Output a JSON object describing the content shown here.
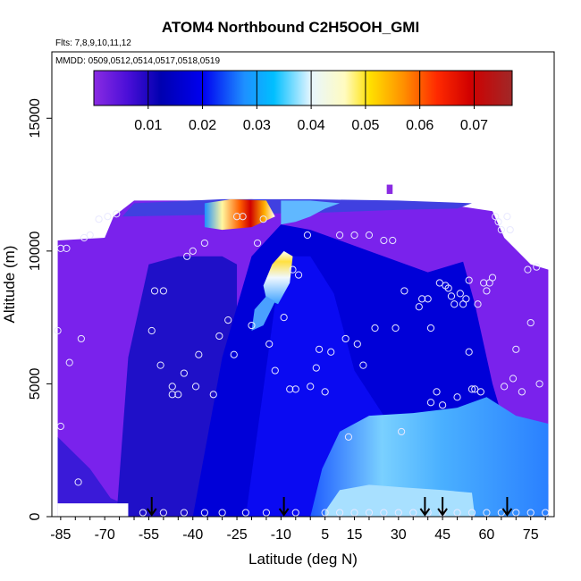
{
  "chart_data": {
    "type": "heatmap",
    "title": "ATOM4 Northbound C2H5OOH_GMI",
    "subtitle_flights": "Flts: 7,8,9,10,11,12",
    "subtitle_dates": "MMDD: 0509,0512,0514,0517,0518,0519",
    "xlabel": "Latitude (deg N)",
    "ylabel": "Altitude (m)",
    "xlim": [
      -88,
      83
    ],
    "ylim": [
      0,
      17500
    ],
    "x_ticks": [
      -85,
      -70,
      -55,
      -40,
      -25,
      -10,
      5,
      15,
      30,
      45,
      60,
      75
    ],
    "y_ticks": [
      0,
      5000,
      10000,
      15000
    ],
    "colorbar": {
      "range": [
        0,
        0.077
      ],
      "ticks": [
        0.01,
        0.02,
        0.03,
        0.04,
        0.05,
        0.06,
        0.07
      ],
      "tick_labels": [
        "0.01",
        "0.02",
        "0.03",
        "0.04",
        "0.05",
        "0.06",
        "0.07"
      ],
      "colors": [
        "#8a2be2",
        "#1a00c8",
        "#0000e0",
        "#1e90ff",
        "#00bfff",
        "#e0f4ff",
        "#fffaa0",
        "#ffd700",
        "#ff8c00",
        "#ff2000",
        "#c80000",
        "#a02828"
      ]
    },
    "arrows_latitude": [
      -54,
      -9,
      39,
      45,
      67
    ],
    "observation_points": [
      [
        -86,
        7000
      ],
      [
        -85,
        3400
      ],
      [
        -85,
        10100
      ],
      [
        -83,
        10100
      ],
      [
        -82,
        5800
      ],
      [
        -79,
        1300
      ],
      [
        -78,
        6700
      ],
      [
        -77,
        10500
      ],
      [
        -75,
        10600
      ],
      [
        -72,
        11200
      ],
      [
        -69,
        11300
      ],
      [
        -66,
        11400
      ],
      [
        -54,
        7000
      ],
      [
        -53,
        8500
      ],
      [
        -51,
        5700
      ],
      [
        -50,
        8500
      ],
      [
        -47,
        4600
      ],
      [
        -47,
        4900
      ],
      [
        -45,
        4600
      ],
      [
        -43,
        5400
      ],
      [
        -42,
        9800
      ],
      [
        -40,
        10000
      ],
      [
        -39,
        4900
      ],
      [
        -38,
        6100
      ],
      [
        -36,
        10300
      ],
      [
        -33,
        4600
      ],
      [
        -31,
        6800
      ],
      [
        -28,
        7400
      ],
      [
        -26,
        6100
      ],
      [
        -25,
        11300
      ],
      [
        -23,
        11300
      ],
      [
        -20,
        7200
      ],
      [
        -18,
        10300
      ],
      [
        -16,
        11200
      ],
      [
        -14,
        6500
      ],
      [
        -12,
        5500
      ],
      [
        -9,
        7500
      ],
      [
        -7,
        4800
      ],
      [
        -6,
        9300
      ],
      [
        -5,
        4800
      ],
      [
        -4,
        9100
      ],
      [
        -1,
        10600
      ],
      [
        0,
        4900
      ],
      [
        2,
        5600
      ],
      [
        3,
        6300
      ],
      [
        5,
        4700
      ],
      [
        7,
        6200
      ],
      [
        10,
        10600
      ],
      [
        12,
        6700
      ],
      [
        13,
        3000
      ],
      [
        15,
        10600
      ],
      [
        16,
        6500
      ],
      [
        18,
        5700
      ],
      [
        20,
        10600
      ],
      [
        22,
        7100
      ],
      [
        25,
        10400
      ],
      [
        28,
        10400
      ],
      [
        29,
        7100
      ],
      [
        31,
        3200
      ],
      [
        32,
        8500
      ],
      [
        37,
        7900
      ],
      [
        38,
        8200
      ],
      [
        40,
        8200
      ],
      [
        41,
        4300
      ],
      [
        41,
        7100
      ],
      [
        43,
        4700
      ],
      [
        44,
        8800
      ],
      [
        45,
        4200
      ],
      [
        46,
        8700
      ],
      [
        47,
        8600
      ],
      [
        48,
        8300
      ],
      [
        49,
        8000
      ],
      [
        50,
        4500
      ],
      [
        51,
        8400
      ],
      [
        52,
        8000
      ],
      [
        53,
        8200
      ],
      [
        54,
        6200
      ],
      [
        54,
        8900
      ],
      [
        55,
        4800
      ],
      [
        56,
        4800
      ],
      [
        57,
        8000
      ],
      [
        58,
        4700
      ],
      [
        59,
        8800
      ],
      [
        60,
        8500
      ],
      [
        61,
        8800
      ],
      [
        62,
        9000
      ],
      [
        63,
        11300
      ],
      [
        64,
        11100
      ],
      [
        65,
        10800
      ],
      [
        66,
        4900
      ],
      [
        67,
        11300
      ],
      [
        68,
        10800
      ],
      [
        69,
        5200
      ],
      [
        70,
        6300
      ],
      [
        72,
        4700
      ],
      [
        74,
        9300
      ],
      [
        75,
        7300
      ],
      [
        77,
        9400
      ],
      [
        78,
        5000
      ]
    ],
    "surface_points_latitude": [
      -57,
      -50,
      -43,
      -36,
      -30,
      -22,
      -15,
      -5,
      5,
      10,
      15,
      20,
      25,
      30,
      35,
      40,
      45,
      50,
      55,
      60,
      65,
      70,
      75,
      80
    ]
  }
}
